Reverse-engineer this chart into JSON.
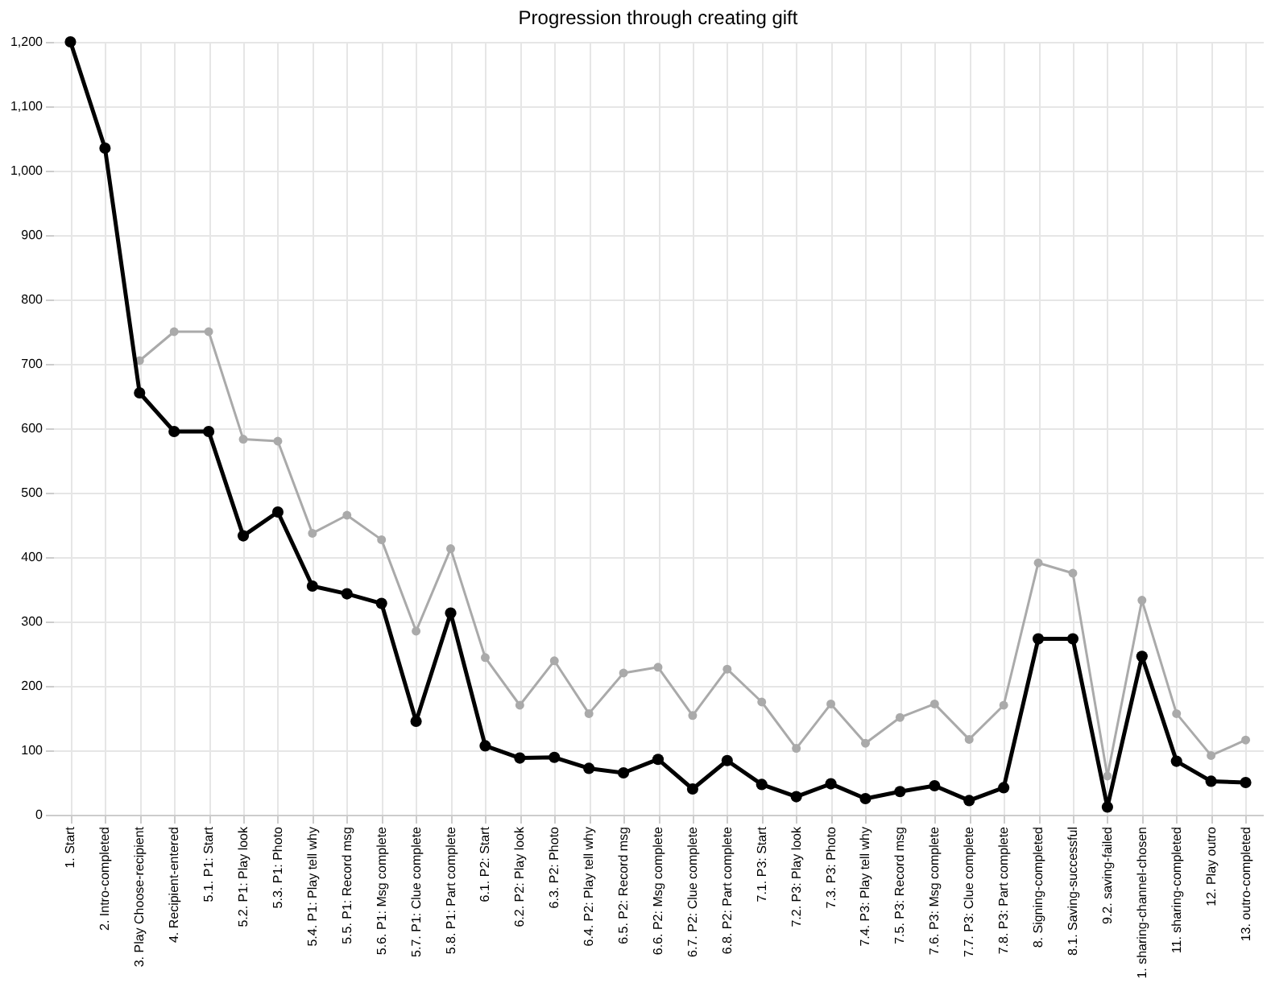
{
  "chart_data": {
    "type": "line",
    "title": "Progression through creating gift",
    "categories": [
      "1. Start",
      "2. Intro-completed",
      "3. Play Choose-recipient",
      "4. Recipient-entered",
      "5.1. P1: Start",
      "5.2. P1: Play look",
      "5.3. P1: Photo",
      "5.4. P1: Play tell why",
      "5.5. P1: Record msg",
      "5.6. P1: Msg complete",
      "5.7. P1: Clue complete",
      "5.8. P1: Part complete",
      "6.1. P2: Start",
      "6.2. P2: Play look",
      "6.3. P2: Photo",
      "6.4. P2: Play tell why",
      "6.5. P2: Record msg",
      "6.6. P2: Msg complete",
      "6.7. P2: Clue complete",
      "6.8. P2: Part complete",
      "7.1. P3: Start",
      "7.2. P3: Play look",
      "7.3. P3: Photo",
      "7.4. P3: Play tell why",
      "7.5. P3: Record msg",
      "7.6. P3: Msg complete",
      "7.7. P3: Clue complete",
      "7.8. P3: Part complete",
      "8. Signing-completed",
      "8.1. Saving-successful",
      "9.2. saving-failed",
      "1. sharing-channel-chosen",
      "11. sharing-completed",
      "12. Play outro",
      "13. outro-completed"
    ],
    "series": [
      {
        "color": "#aaaaaa",
        "values": [
          null,
          null,
          705,
          750,
          750,
          583,
          580,
          437,
          465,
          427,
          285,
          413,
          244,
          170,
          239,
          157,
          220,
          229,
          154,
          226,
          175,
          103,
          172,
          111,
          151,
          172,
          117,
          170,
          391,
          375,
          60,
          333,
          157,
          92,
          116
        ]
      },
      {
        "color": "#000000",
        "values": [
          1200,
          1035,
          655,
          595,
          595,
          433,
          470,
          355,
          343,
          328,
          145,
          313,
          107,
          88,
          89,
          72,
          65,
          86,
          40,
          84,
          47,
          28,
          48,
          25,
          36,
          45,
          22,
          42,
          273,
          273,
          12,
          246,
          83,
          52,
          50
        ]
      }
    ],
    "ylim": [
      0,
      1200
    ],
    "yticks": [
      0,
      100,
      200,
      300,
      400,
      500,
      600,
      700,
      800,
      900,
      {
        "value": 1000,
        "label": "1,000"
      },
      {
        "value": 1100,
        "label": "1,100"
      },
      {
        "value": 1200,
        "label": "1,200"
      }
    ],
    "grid": true,
    "marker": "circle",
    "line_style": "solid"
  }
}
